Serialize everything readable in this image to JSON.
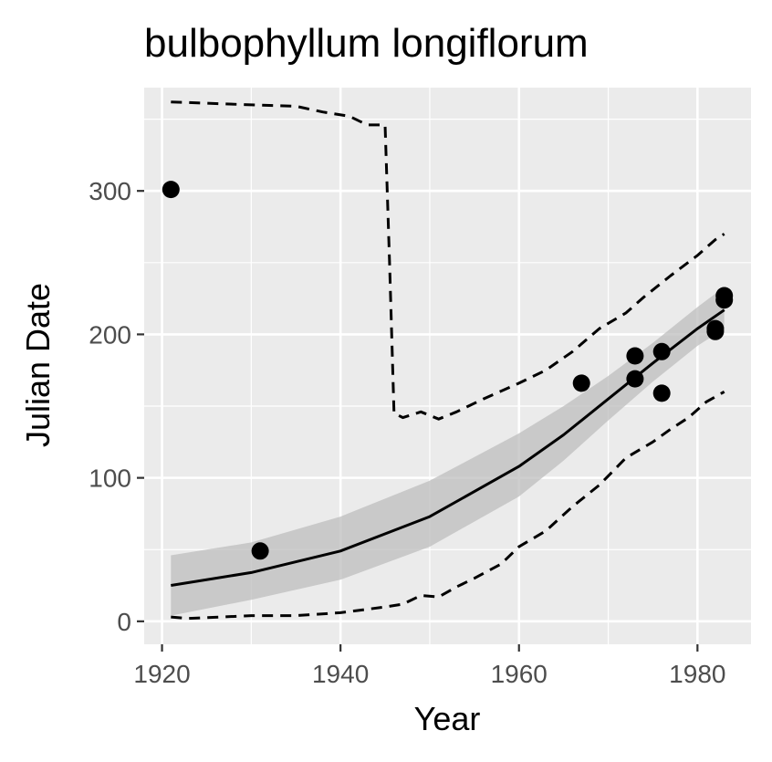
{
  "chart_data": {
    "type": "scatter",
    "title": "bulbophyllum longiflorum",
    "xlabel": "Year",
    "ylabel": "Julian Date",
    "xlim": [
      1918,
      1986
    ],
    "ylim": [
      -16,
      372
    ],
    "x_ticks": [
      1920,
      1940,
      1960,
      1980
    ],
    "y_ticks": [
      0,
      100,
      200,
      300
    ],
    "grid": true,
    "legend": "none",
    "colors": {
      "panel": "#ebebeb",
      "grid": "#ffffff",
      "points": "#000000",
      "ribbon": "#bdbdbd",
      "line": "#000000"
    },
    "points": [
      {
        "x": 1921,
        "y": 301
      },
      {
        "x": 1931,
        "y": 49
      },
      {
        "x": 1967,
        "y": 166
      },
      {
        "x": 1973,
        "y": 185
      },
      {
        "x": 1973,
        "y": 169
      },
      {
        "x": 1976,
        "y": 188
      },
      {
        "x": 1976,
        "y": 159
      },
      {
        "x": 1982,
        "y": 204
      },
      {
        "x": 1982,
        "y": 202
      },
      {
        "x": 1983,
        "y": 227
      },
      {
        "x": 1983,
        "y": 224
      }
    ],
    "series": [
      {
        "kind": "fit",
        "style": "solid",
        "points": [
          {
            "x": 1921,
            "y": 25
          },
          {
            "x": 1930,
            "y": 34
          },
          {
            "x": 1940,
            "y": 49
          },
          {
            "x": 1950,
            "y": 73
          },
          {
            "x": 1960,
            "y": 108
          },
          {
            "x": 1965,
            "y": 130
          },
          {
            "x": 1970,
            "y": 155
          },
          {
            "x": 1975,
            "y": 180
          },
          {
            "x": 1980,
            "y": 204
          },
          {
            "x": 1983,
            "y": 217
          }
        ]
      },
      {
        "kind": "upper-bound",
        "style": "dashed",
        "points": [
          {
            "x": 1921,
            "y": 362
          },
          {
            "x": 1930,
            "y": 360
          },
          {
            "x": 1935,
            "y": 359
          },
          {
            "x": 1938,
            "y": 355
          },
          {
            "x": 1941,
            "y": 352
          },
          {
            "x": 1943,
            "y": 346
          },
          {
            "x": 1945,
            "y": 346
          },
          {
            "x": 1945.5,
            "y": 250
          },
          {
            "x": 1946,
            "y": 145
          },
          {
            "x": 1947,
            "y": 142
          },
          {
            "x": 1949,
            "y": 146
          },
          {
            "x": 1951,
            "y": 141
          },
          {
            "x": 1953,
            "y": 146
          },
          {
            "x": 1956,
            "y": 155
          },
          {
            "x": 1960,
            "y": 166
          },
          {
            "x": 1963,
            "y": 175
          },
          {
            "x": 1966,
            "y": 188
          },
          {
            "x": 1969,
            "y": 204
          },
          {
            "x": 1972,
            "y": 215
          },
          {
            "x": 1974,
            "y": 226
          },
          {
            "x": 1977,
            "y": 241
          },
          {
            "x": 1980,
            "y": 255
          },
          {
            "x": 1982,
            "y": 266
          },
          {
            "x": 1983,
            "y": 270
          }
        ]
      },
      {
        "kind": "lower-bound",
        "style": "dashed",
        "points": [
          {
            "x": 1921,
            "y": 3
          },
          {
            "x": 1923,
            "y": 2
          },
          {
            "x": 1930,
            "y": 4
          },
          {
            "x": 1935,
            "y": 4
          },
          {
            "x": 1940,
            "y": 6
          },
          {
            "x": 1945,
            "y": 10
          },
          {
            "x": 1947,
            "y": 12
          },
          {
            "x": 1949,
            "y": 18
          },
          {
            "x": 1951,
            "y": 17
          },
          {
            "x": 1953,
            "y": 24
          },
          {
            "x": 1955,
            "y": 30
          },
          {
            "x": 1958,
            "y": 40
          },
          {
            "x": 1960,
            "y": 52
          },
          {
            "x": 1963,
            "y": 63
          },
          {
            "x": 1966,
            "y": 80
          },
          {
            "x": 1969,
            "y": 95
          },
          {
            "x": 1972,
            "y": 114
          },
          {
            "x": 1975,
            "y": 125
          },
          {
            "x": 1977,
            "y": 134
          },
          {
            "x": 1979,
            "y": 142
          },
          {
            "x": 1981,
            "y": 153
          },
          {
            "x": 1983,
            "y": 160
          }
        ]
      }
    ],
    "ribbon": [
      {
        "x": 1921,
        "lo": 4,
        "hi": 46
      },
      {
        "x": 1930,
        "lo": 15,
        "hi": 55
      },
      {
        "x": 1940,
        "lo": 29,
        "hi": 73
      },
      {
        "x": 1950,
        "lo": 52,
        "hi": 98
      },
      {
        "x": 1960,
        "lo": 87,
        "hi": 131
      },
      {
        "x": 1965,
        "lo": 112,
        "hi": 150
      },
      {
        "x": 1970,
        "lo": 140,
        "hi": 171
      },
      {
        "x": 1975,
        "lo": 167,
        "hi": 194
      },
      {
        "x": 1980,
        "lo": 192,
        "hi": 219
      },
      {
        "x": 1983,
        "lo": 204,
        "hi": 233
      }
    ]
  }
}
